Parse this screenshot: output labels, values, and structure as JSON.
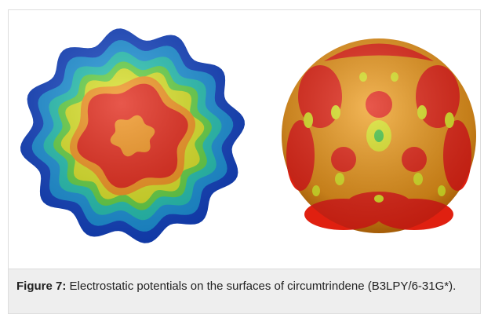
{
  "figure": {
    "label": "Figure 7:",
    "caption": "Electrostatic potentials on the surfaces of circumtrindene (B3LPY/6-31G*)."
  }
}
